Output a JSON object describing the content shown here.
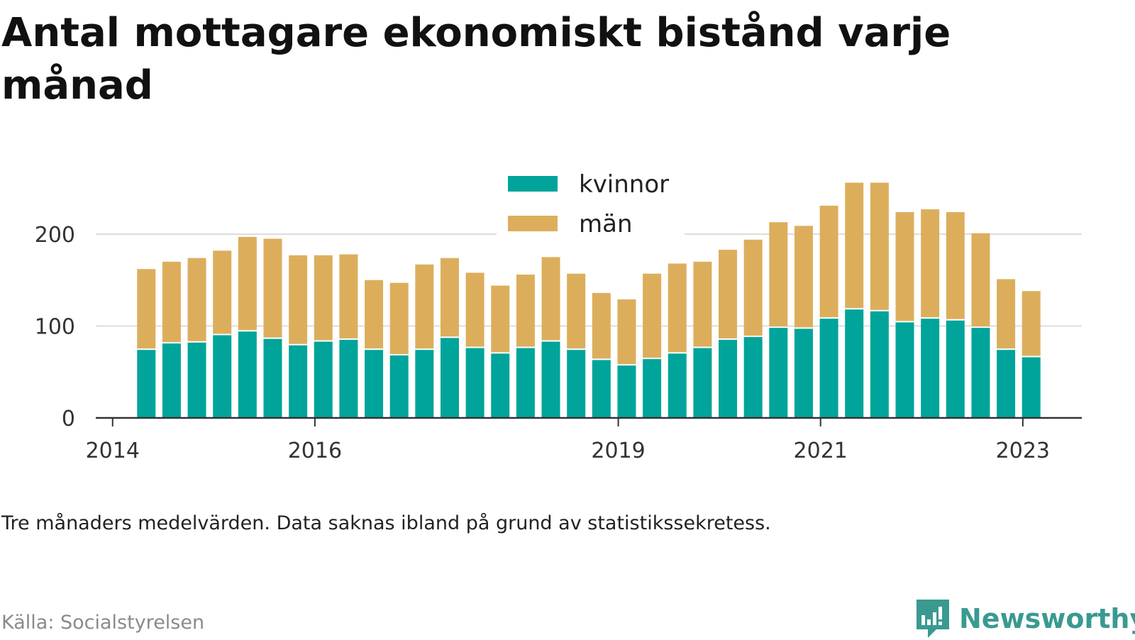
{
  "title": "Antal mottagare ekonomiskt bistånd varje månad",
  "note": "Tre månaders medelvärden. Data saknas ibland på grund av statistikssekretess.",
  "source": "Källa: Socialstyrelsen",
  "brand": {
    "name": "Newsworthy",
    "color": "#3a9a90",
    "icon": "newsworthy-logo-icon"
  },
  "colors": {
    "kvinnor": "#00a49a",
    "man": "#dcae5c",
    "grid": "#dddddd",
    "axis": "#333333"
  },
  "chart_data": {
    "type": "bar",
    "stacked": true,
    "title": "Antal mottagare ekonomiskt bistånd varje månad",
    "xlabel": "",
    "ylabel": "",
    "ylim": [
      0,
      270
    ],
    "yticks": [
      0,
      100,
      200
    ],
    "xlim": [
      "2013-11",
      "2023-08"
    ],
    "xticks": [
      {
        "label": "2014",
        "date": "2014-01"
      },
      {
        "label": "2016",
        "date": "2016-01"
      },
      {
        "label": "2019",
        "date": "2019-01"
      },
      {
        "label": "2021",
        "date": "2021-01"
      },
      {
        "label": "2023",
        "date": "2023-01"
      }
    ],
    "grid": true,
    "legend_position": "top-center",
    "categories": [
      "2014-05",
      "2014-08",
      "2014-11",
      "2015-02",
      "2015-05",
      "2015-08",
      "2015-11",
      "2016-02",
      "2016-05",
      "2016-08",
      "2016-11",
      "2017-02",
      "2017-05",
      "2017-08",
      "2017-11",
      "2018-02",
      "2018-05",
      "2018-08",
      "2018-11",
      "2019-02",
      "2019-05",
      "2019-08",
      "2019-11",
      "2020-02",
      "2020-05",
      "2020-08",
      "2020-11",
      "2021-02",
      "2021-05",
      "2021-08",
      "2021-11",
      "2022-02",
      "2022-05",
      "2022-08",
      "2022-11",
      "2023-02",
      "2023-05"
    ],
    "series": [
      {
        "name": "kvinnor",
        "color": "#00a49a",
        "values": [
          74,
          81,
          82,
          90,
          94,
          86,
          79,
          83,
          85,
          74,
          68,
          74,
          87,
          76,
          70,
          76,
          83,
          74,
          63,
          57,
          64,
          70,
          76,
          85,
          88,
          98,
          97,
          108,
          118,
          116,
          104,
          108,
          106,
          98,
          74,
          66,
          0
        ]
      },
      {
        "name": "män",
        "color": "#dcae5c",
        "values": [
          88,
          89,
          92,
          92,
          103,
          109,
          98,
          94,
          93,
          76,
          79,
          93,
          87,
          82,
          74,
          80,
          92,
          83,
          73,
          72,
          93,
          98,
          94,
          98,
          106,
          115,
          112,
          123,
          138,
          140,
          120,
          119,
          118,
          103,
          77,
          72,
          0
        ]
      }
    ]
  }
}
